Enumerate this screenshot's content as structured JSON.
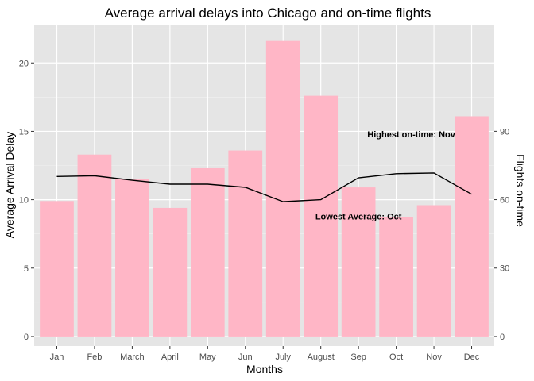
{
  "chart_data": {
    "type": "bar",
    "title": "Average arrival delays into Chicago and on-time flights",
    "xlabel": "Months",
    "ylabel": "Average Arrival Delay",
    "y2label": "Flights on-time",
    "categories": [
      "Jan",
      "Feb",
      "March",
      "April",
      "May",
      "Jun",
      "July",
      "August",
      "Sep",
      "Oct",
      "Nov",
      "Dec"
    ],
    "ylim": [
      -0.7,
      22.8
    ],
    "y_ticks": [
      0,
      5,
      10,
      15,
      20
    ],
    "y2_ticks": [
      0,
      30,
      60,
      90
    ],
    "y2_scale_factor": 0.1667,
    "bar_color": "#ffb6c6",
    "line_color": "#000000",
    "panel_background": "#e5e5e5",
    "gridlines": true,
    "series": [
      {
        "type": "bar",
        "axis": "left",
        "values": [
          9.9,
          13.3,
          11.5,
          9.4,
          12.3,
          13.6,
          21.6,
          17.6,
          10.9,
          8.7,
          9.6,
          16.1
        ]
      },
      {
        "type": "line",
        "axis": "right",
        "values": [
          70.2,
          70.5,
          68.5,
          66.8,
          66.8,
          65.4,
          59.1,
          60.0,
          69.6,
          71.4,
          71.7,
          62.4
        ]
      }
    ],
    "annotations": [
      {
        "text": "Highest on-time: Nov",
        "x": 10.4,
        "y": 14.8
      },
      {
        "text": "Lowest Average: Oct",
        "x": 9.0,
        "y": 8.8
      }
    ]
  }
}
